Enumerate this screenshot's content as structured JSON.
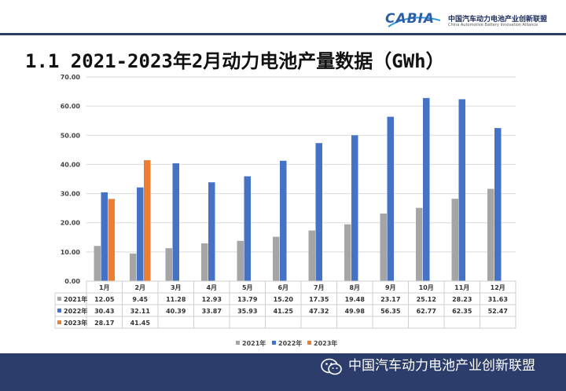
{
  "logo": {
    "mark": "CABIA",
    "cn": "中国汽车动力电池产业创新联盟",
    "en": "China Automotive Battery Innovation Alliance"
  },
  "title": "1.1 2021-2023年2月动力电池产量数据（GWh）",
  "footer": {
    "text": "中国汽车动力电池产业创新联盟"
  },
  "chart_data": {
    "type": "bar",
    "title": "2021-2023年2月动力电池产量数据（GWh）",
    "categories": [
      "1月",
      "2月",
      "3月",
      "4月",
      "5月",
      "6月",
      "7月",
      "8月",
      "9月",
      "10月",
      "11月",
      "12月"
    ],
    "series": [
      {
        "name": "2021年",
        "color": "#a5a5a5",
        "values": [
          12.05,
          9.45,
          11.28,
          12.93,
          13.79,
          15.2,
          17.35,
          19.48,
          23.17,
          25.12,
          28.23,
          31.63
        ]
      },
      {
        "name": "2022年",
        "color": "#4472c4",
        "values": [
          30.43,
          32.11,
          40.39,
          33.87,
          35.93,
          41.25,
          47.32,
          49.98,
          56.35,
          62.77,
          62.35,
          52.47
        ]
      },
      {
        "name": "2023年",
        "color": "#ed7d31",
        "values": [
          28.17,
          41.45,
          null,
          null,
          null,
          null,
          null,
          null,
          null,
          null,
          null,
          null
        ]
      }
    ],
    "yticks": [
      "0.00",
      "10.00",
      "20.00",
      "30.00",
      "40.00",
      "50.00",
      "60.00",
      "70.00"
    ],
    "ylim": [
      0,
      70
    ],
    "legend": "bottom-center",
    "table": true
  }
}
